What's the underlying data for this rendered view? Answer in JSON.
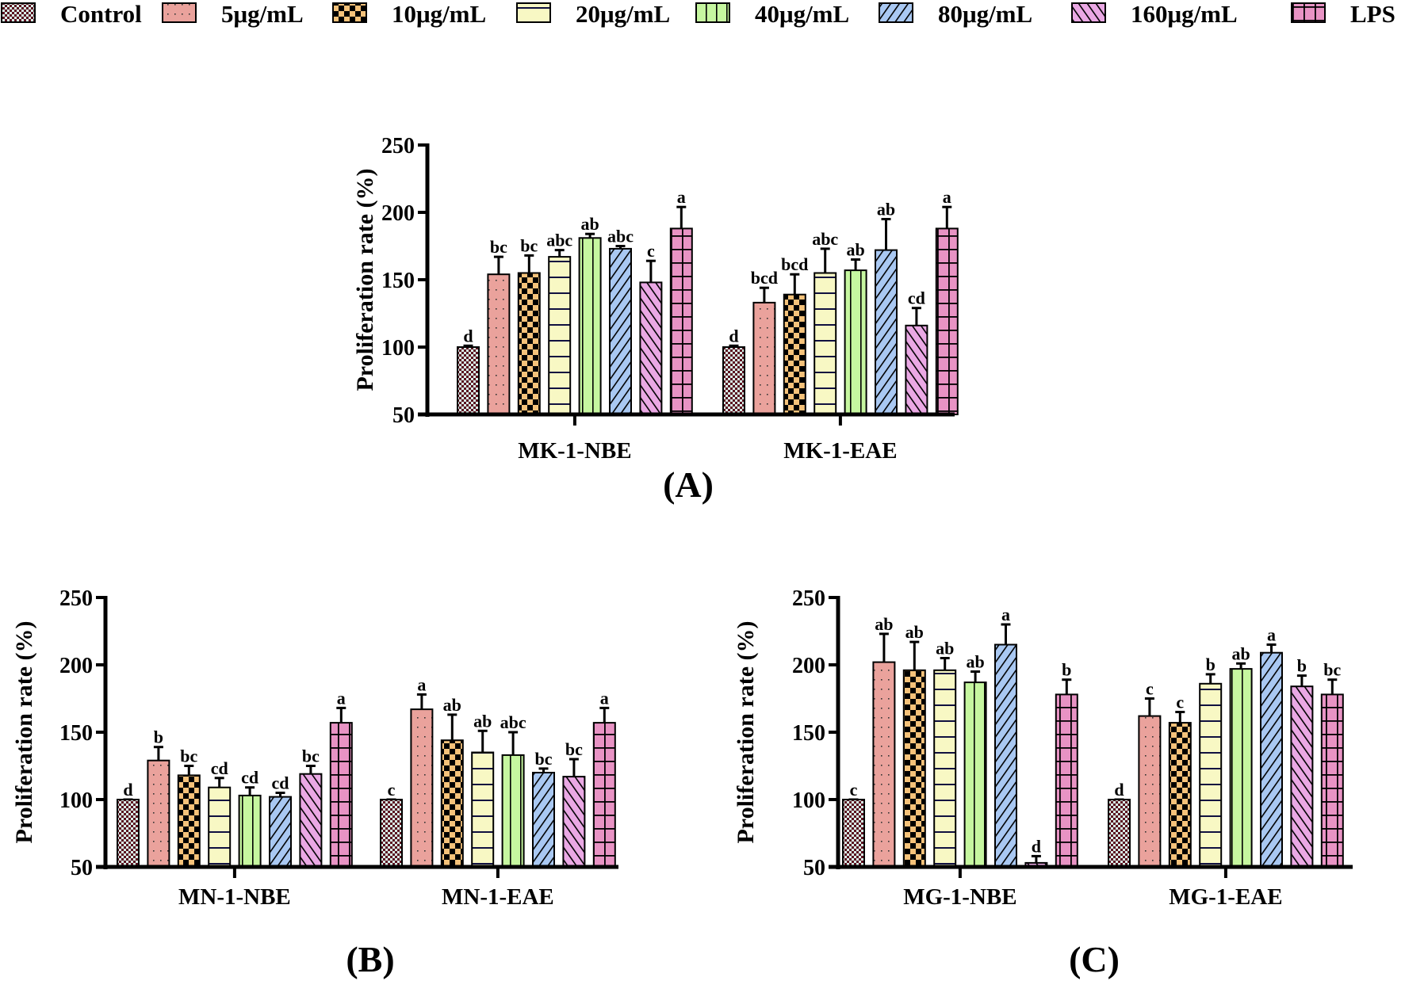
{
  "legend": [
    {
      "label": "Control",
      "color": "#d8efe6",
      "ink": "#5a1020",
      "pattern": "checker-small"
    },
    {
      "label": "5μg/mL",
      "color": "#eaa29c",
      "ink": "#333333",
      "pattern": "dots"
    },
    {
      "label": "10μg/mL",
      "color": "#f5c27a",
      "ink": "#000000",
      "pattern": "checker-large"
    },
    {
      "label": "20μg/mL",
      "color": "#f8f8c4",
      "ink": "#101040",
      "pattern": "horizontal-lines"
    },
    {
      "label": "40μg/mL",
      "color": "#c6f7a0",
      "ink": "#000000",
      "pattern": "vertical-lines"
    },
    {
      "label": "80μg/mL",
      "color": "#a9c8f2",
      "ink": "#000000",
      "pattern": "diagonal-up"
    },
    {
      "label": "160μg/mL",
      "color": "#eaa8e4",
      "ink": "#000000",
      "pattern": "diagonal-down"
    },
    {
      "label": "LPS",
      "color": "#e893c4",
      "ink": "#000000",
      "pattern": "grid"
    }
  ],
  "chart_data": [
    {
      "type": "bar",
      "panel_label": "(A)",
      "ylabel": "Proliferation rate (%)",
      "ylim": [
        50,
        250
      ],
      "yticks": [
        "50",
        "100",
        "150",
        "200",
        "250"
      ],
      "categories": [
        "MK-1-NBE",
        "MK-1-EAE"
      ],
      "series_names": [
        "Control",
        "5μg/mL",
        "10μg/mL",
        "20μg/mL",
        "40μg/mL",
        "80μg/mL",
        "160μg/mL",
        "LPS"
      ],
      "groups": [
        {
          "values": [
            100,
            154,
            155,
            167,
            181,
            173,
            148,
            188
          ],
          "errors": [
            1,
            13,
            13,
            5,
            3,
            2,
            16,
            16
          ],
          "letters": [
            "d",
            "bc",
            "bc",
            "abc",
            "ab",
            "abc",
            "c",
            "a"
          ]
        },
        {
          "values": [
            100,
            133,
            139,
            155,
            157,
            172,
            116,
            188
          ],
          "errors": [
            1,
            11,
            15,
            18,
            8,
            23,
            13,
            16
          ],
          "letters": [
            "d",
            "bcd",
            "bcd",
            "abc",
            "ab",
            "ab",
            "cd",
            "a"
          ]
        }
      ]
    },
    {
      "type": "bar",
      "panel_label": "(B)",
      "ylabel": "Proliferation rate (%)",
      "ylim": [
        50,
        250
      ],
      "yticks": [
        "50",
        "100",
        "150",
        "200",
        "250"
      ],
      "categories": [
        "MN-1-NBE",
        "MN-1-EAE"
      ],
      "series_names": [
        "Control",
        "5μg/mL",
        "10μg/mL",
        "20μg/mL",
        "40μg/mL",
        "80μg/mL",
        "160μg/mL",
        "LPS"
      ],
      "groups": [
        {
          "values": [
            100,
            129,
            118,
            109,
            103,
            102,
            119,
            157
          ],
          "errors": [
            0,
            10,
            7,
            7,
            6,
            3,
            6,
            11
          ],
          "letters": [
            "d",
            "b",
            "bc",
            "cd",
            "cd",
            "cd",
            "bc",
            "a"
          ]
        },
        {
          "values": [
            100,
            167,
            144,
            135,
            133,
            120,
            117,
            157
          ],
          "errors": [
            0,
            11,
            19,
            16,
            17,
            3,
            13,
            11
          ],
          "letters": [
            "c",
            "a",
            "ab",
            "ab",
            "abc",
            "bc",
            "bc",
            "a"
          ]
        }
      ]
    },
    {
      "type": "bar",
      "panel_label": "(C)",
      "ylabel": "Proliferation rate (%)",
      "ylim": [
        50,
        250
      ],
      "yticks": [
        "50",
        "100",
        "150",
        "200",
        "250"
      ],
      "categories": [
        "MG-1-NBE",
        "MG-1-EAE"
      ],
      "series_names": [
        "Control",
        "5μg/mL",
        "10μg/mL",
        "20μg/mL",
        "40μg/mL",
        "80μg/mL",
        "160μg/mL",
        "LPS"
      ],
      "groups": [
        {
          "values": [
            100,
            202,
            196,
            196,
            187,
            215,
            53,
            178
          ],
          "errors": [
            0,
            21,
            21,
            9,
            8,
            15,
            5,
            11
          ],
          "letters": [
            "c",
            "ab",
            "ab",
            "ab",
            "ab",
            "a",
            "d",
            "b"
          ]
        },
        {
          "values": [
            100,
            162,
            157,
            186,
            197,
            209,
            184,
            178
          ],
          "errors": [
            0,
            13,
            8,
            7,
            4,
            6,
            8,
            11
          ],
          "letters": [
            "d",
            "c",
            "c",
            "b",
            "ab",
            "a",
            "b",
            "bc"
          ]
        }
      ]
    }
  ]
}
